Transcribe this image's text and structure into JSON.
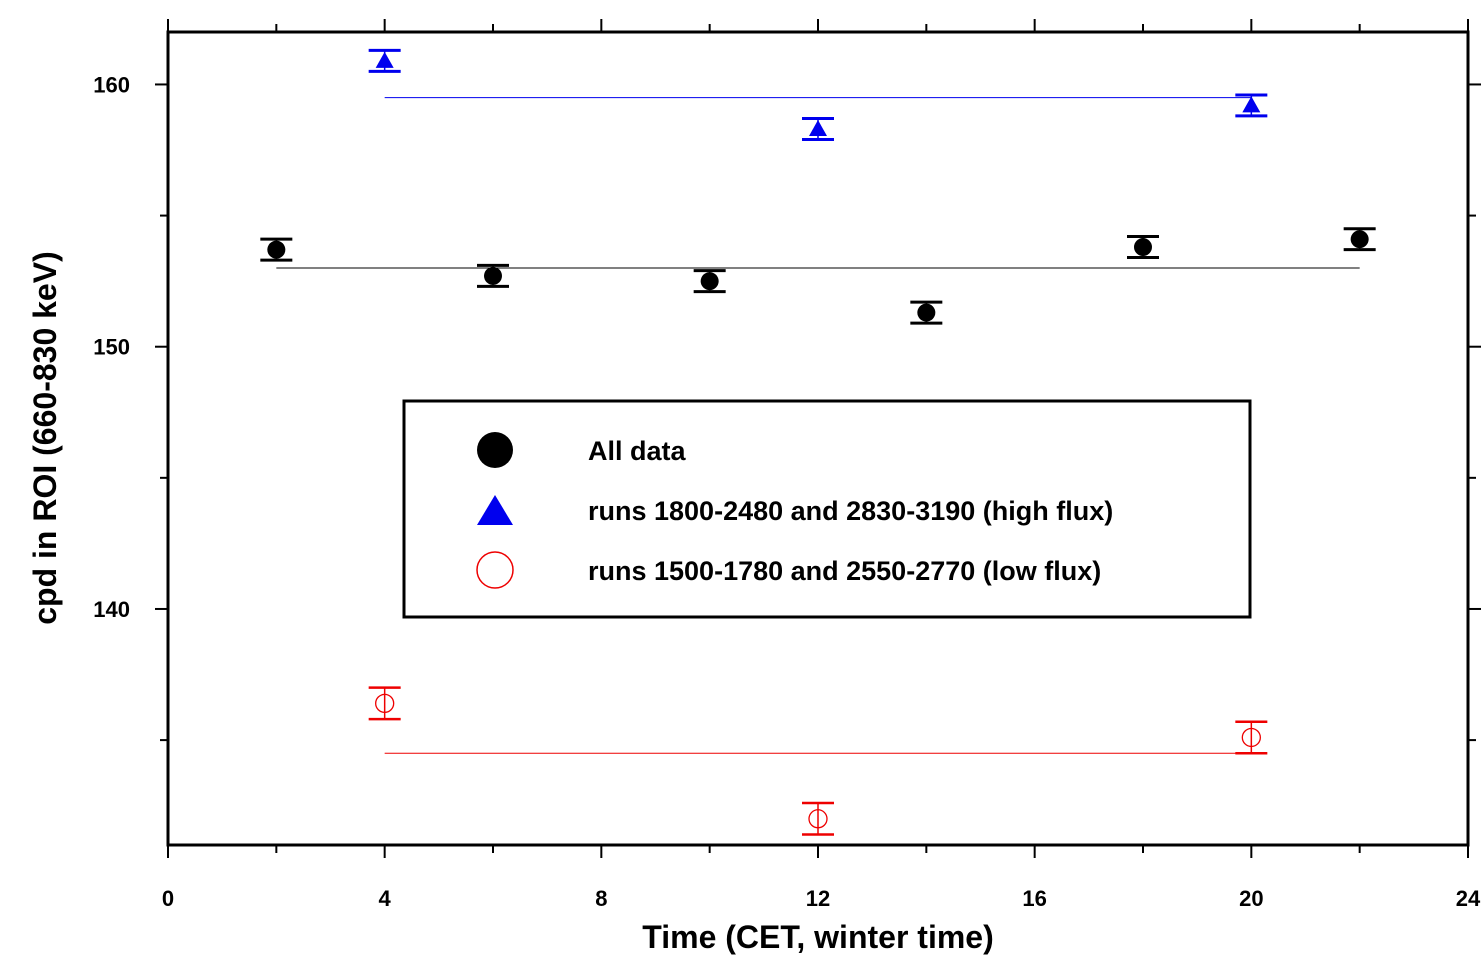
{
  "chart_data": {
    "type": "scatter",
    "xlabel": "Time (CET, winter time)",
    "ylabel": "cpd in ROI (660-830 keV)",
    "xlim": [
      0,
      24
    ],
    "ylim": [
      131,
      162
    ],
    "xticks": [
      0,
      4,
      8,
      12,
      16,
      20,
      24
    ],
    "xtick_labels": [
      "0",
      "4",
      "8",
      "12",
      "16",
      "20",
      "24"
    ],
    "yticks": [
      140,
      150,
      160
    ],
    "ytick_labels": [
      "140",
      "150",
      "160"
    ],
    "grid": false,
    "legend_placement": "center",
    "series": [
      {
        "name": "All data",
        "marker": "filled-circle",
        "color": "#000000",
        "x": [
          2,
          6,
          10,
          14,
          18,
          22
        ],
        "y": [
          153.7,
          152.7,
          152.5,
          151.3,
          153.8,
          154.1
        ],
        "err": [
          0.4,
          0.4,
          0.4,
          0.4,
          0.4,
          0.4
        ],
        "fit": {
          "x": [
            2,
            22
          ],
          "y": 153.0
        }
      },
      {
        "name": "runs 1800-2480 and 2830-3190 (high flux)",
        "marker": "filled-triangle",
        "color": "#0000ee",
        "x": [
          4,
          12,
          20
        ],
        "y": [
          160.9,
          158.3,
          159.2
        ],
        "err": [
          0.4,
          0.4,
          0.4
        ],
        "fit": {
          "x": [
            4,
            20
          ],
          "y": 159.5
        }
      },
      {
        "name": "runs 1500-1780 and 2550-2770 (low flux)",
        "marker": "open-circle",
        "color": "#ee0000",
        "x": [
          4,
          12,
          20
        ],
        "y": [
          136.4,
          132.0,
          135.1
        ],
        "err": [
          0.6,
          0.6,
          0.6
        ],
        "fit": {
          "x": [
            4,
            20
          ],
          "y": 134.5
        }
      }
    ]
  }
}
